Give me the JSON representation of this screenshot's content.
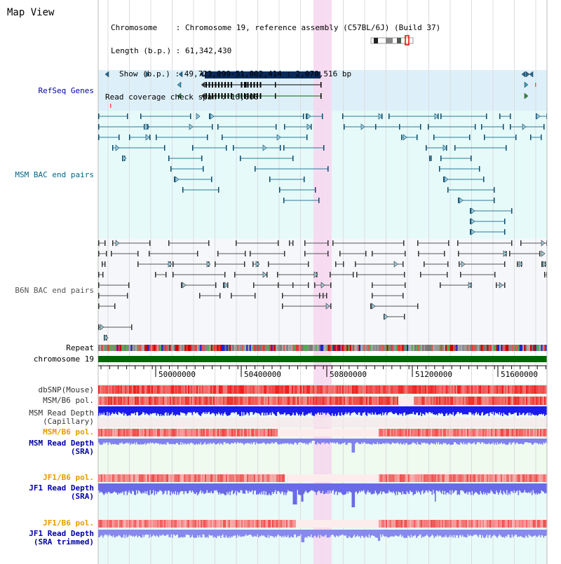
{
  "title": "Map View",
  "info": {
    "chromosome_key": "Chromosome",
    "chromosome_val": "Chromosome 19, reference assembly (C57BL/6J) (Build 37)",
    "length_key": "Length (b.p.)",
    "length_val": "61,342,430",
    "show_key": "Show (b.p.)",
    "show_val": "49,723,899-51,802,414 : 2,078,516 bp",
    "coverage_key": "Read coverage check span",
    "coverage_val": "10,000"
  },
  "tracks": {
    "refseq": "RefSeq Genes",
    "msm_bac": "MSM BAC end pairs",
    "b6n_bac": "B6N BAC end pairs",
    "repeat": "Repeat",
    "chromosome": "chromosome 19",
    "dbsnp": "dbSNP(Mouse)",
    "msm_b6_pol": "MSM/B6 pol.",
    "msm_depth_cap": "MSM Read Depth\n(Capillary)",
    "msm_b6_pol2": "MSM/B6 pol.",
    "msm_depth_sra": "MSM Read Depth\n(SRA)",
    "jf1_b6_pol": "JF1/B6 pol.",
    "jf1_depth_sra": "JF1 Read Depth\n(SRA)",
    "jf1_b6_pol2": "JF1/B6 pol.",
    "jf1_depth_trim": "JF1 Read Depth\n(SRA trimmed)"
  },
  "ruler": {
    "ticks": [
      "50000000",
      "50400000",
      "50800000",
      "51200000",
      "51600000"
    ]
  },
  "colors": {
    "refseq_bg": "#ddf0fa",
    "msm_bg": "#e6fafa",
    "b6n_bg": "#f5f7fa",
    "highlight": "#f7d6ef",
    "refseq_label": "#0000aa",
    "msm_label": "#006688",
    "b6n_label": "#555555",
    "pol_label": "#e69a00",
    "depth_label": "#0000aa",
    "chrom_bar": "#006600"
  }
}
